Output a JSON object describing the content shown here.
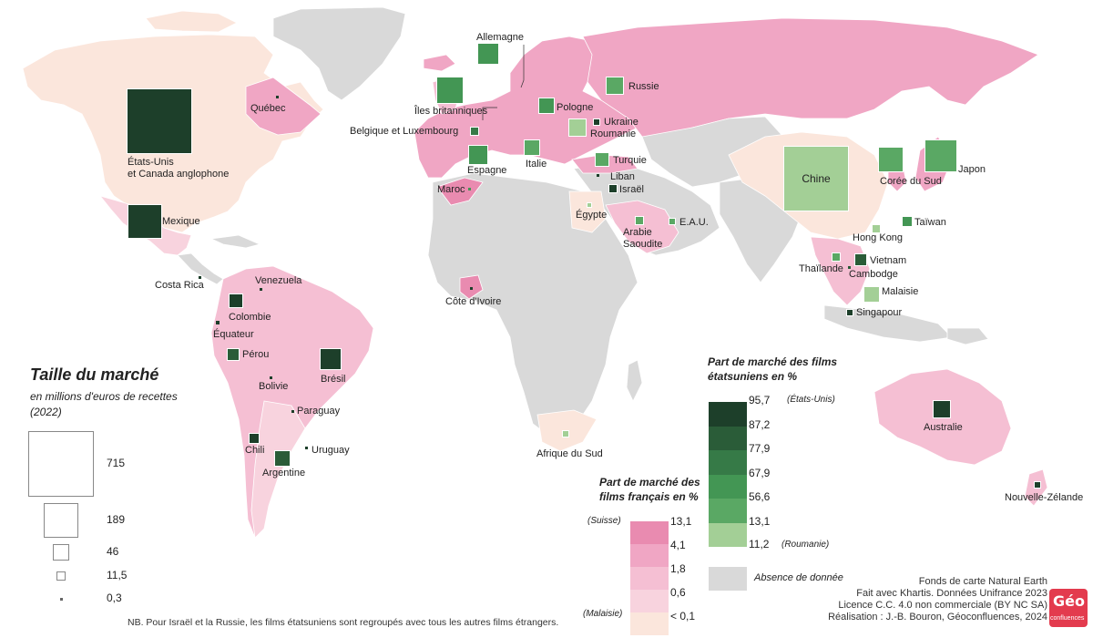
{
  "colors": {
    "ocean": "#ffffff",
    "no_data": "#d9d9d9",
    "fr_5": "#e98bb0",
    "fr_4": "#f0a6c4",
    "fr_3": "#f5bfd3",
    "fr_2": "#f8d3de",
    "fr_1": "#fbe6dc",
    "us_6": "#1d3f2a",
    "us_5": "#2a5c38",
    "us_4": "#367a47",
    "us_3": "#439654",
    "us_2": "#5aa864",
    "us_1": "#a3cf96"
  },
  "legend_size": {
    "title": "Taille du marché",
    "subtitle": "en millions d'euros de recettes",
    "year": "(2022)",
    "values": [
      715,
      189,
      46,
      11.5,
      0.3
    ],
    "labels": [
      "715",
      "189",
      "46",
      "11,5",
      "0,3"
    ]
  },
  "legend_us": {
    "title_line1": "Part de marché des films",
    "title_line2": "étatsuniens en %",
    "labels": [
      "95,7",
      "87,2",
      "77,9",
      "67,9",
      "56,6",
      "13,1",
      "11,2"
    ],
    "max_note": "(États-Unis)",
    "min_note": "(Roumanie)"
  },
  "legend_fr": {
    "title_line1": "Part de marché des",
    "title_line2": "films français en %",
    "labels": [
      "13,1",
      "4,1",
      "1,8",
      "0,6",
      "< 0,1"
    ],
    "max_note": "(Suisse)",
    "min_note": "(Malaisie)"
  },
  "no_data_label": "Absence de donnée",
  "note": "NB. Pour Israël et la Russie, les films étatsuniens sont regroupés avec tous les autres films étrangers.",
  "credits": [
    "Fonds de carte Natural Earth",
    "Fait avec Khartis. Données Unifrance 2023",
    "Licence C.C. 4.0 non commerciale (BY NC SA)",
    "Réalisation : J.-B. Bouron, Géoconfluences, 2024"
  ],
  "logo": {
    "text1": "Géo",
    "text2": "confluences"
  },
  "markets": [
    {
      "name": "États-Unis\net Canada anglophone",
      "value": 715,
      "us_class": 6
    },
    {
      "name": "Québec",
      "value": 1,
      "us_class": 6
    },
    {
      "name": "Mexique",
      "value": 190,
      "us_class": 6
    },
    {
      "name": "Costa Rica",
      "value": 0.5,
      "us_class": 6
    },
    {
      "name": "Venezuela",
      "value": 0.5,
      "us_class": 6
    },
    {
      "name": "Colombie",
      "value": 35,
      "us_class": 6
    },
    {
      "name": "Équateur",
      "value": 1.5,
      "us_class": 6
    },
    {
      "name": "Pérou",
      "value": 30,
      "us_class": 5
    },
    {
      "name": "Bolivie",
      "value": 1,
      "us_class": 6
    },
    {
      "name": "Brésil",
      "value": 75,
      "us_class": 6
    },
    {
      "name": "Paraguay",
      "value": 0.3,
      "us_class": 6
    },
    {
      "name": "Chili",
      "value": 20,
      "us_class": 6
    },
    {
      "name": "Uruguay",
      "value": 0.8,
      "us_class": 6
    },
    {
      "name": "Argentine",
      "value": 40,
      "us_class": 5
    },
    {
      "name": "Allemagne",
      "value": 75,
      "us_class": 3
    },
    {
      "name": "Îles britanniques",
      "value": 125,
      "us_class": 3
    },
    {
      "name": "Pologne",
      "value": 40,
      "us_class": 3
    },
    {
      "name": "Belgique et Luxembourg",
      "value": 15,
      "us_class": 4
    },
    {
      "name": "Espagne",
      "value": 65,
      "us_class": 3
    },
    {
      "name": "Italie",
      "value": 45,
      "us_class": 2
    },
    {
      "name": "Ukraine",
      "value": 8,
      "us_class": 6
    },
    {
      "name": "Roumanie",
      "value": 60,
      "us_class": 1
    },
    {
      "name": "Russie",
      "value": 50,
      "us_class": 2
    },
    {
      "name": "Turquie",
      "value": 35,
      "us_class": 2
    },
    {
      "name": "Liban",
      "value": 0.5,
      "us_class": 6
    },
    {
      "name": "Israël",
      "value": 12,
      "us_class": 6
    },
    {
      "name": "Maroc",
      "value": 0.5,
      "us_class": 3
    },
    {
      "name": "Égypte",
      "value": 6,
      "us_class": 1
    },
    {
      "name": "Arabie\nSaoudite",
      "value": 15,
      "us_class": 2
    },
    {
      "name": "E.A.U.",
      "value": 8,
      "us_class": 2
    },
    {
      "name": "Côte d'Ivoire",
      "value": 0.5,
      "us_class": 6
    },
    {
      "name": "Afrique du Sud",
      "value": 8,
      "us_class": 1
    },
    {
      "name": "Chine",
      "value": 715,
      "us_class": 1
    },
    {
      "name": "Corée du Sud",
      "value": 110,
      "us_class": 2
    },
    {
      "name": "Japon",
      "value": 170,
      "us_class": 2
    },
    {
      "name": "Taïwan",
      "value": 20,
      "us_class": 3
    },
    {
      "name": "Hong Kong",
      "value": 12,
      "us_class": 1
    },
    {
      "name": "Thaïlande",
      "value": 12,
      "us_class": 2
    },
    {
      "name": "Vietnam",
      "value": 30,
      "us_class": 5
    },
    {
      "name": "Cambodge",
      "value": 1,
      "us_class": 5
    },
    {
      "name": "Malaisie",
      "value": 40,
      "us_class": 1
    },
    {
      "name": "Singapour",
      "value": 8,
      "us_class": 6
    },
    {
      "name": "Australie",
      "value": 55,
      "us_class": 6
    },
    {
      "name": "Nouvelle-Zélande",
      "value": 8,
      "us_class": 6
    }
  ]
}
